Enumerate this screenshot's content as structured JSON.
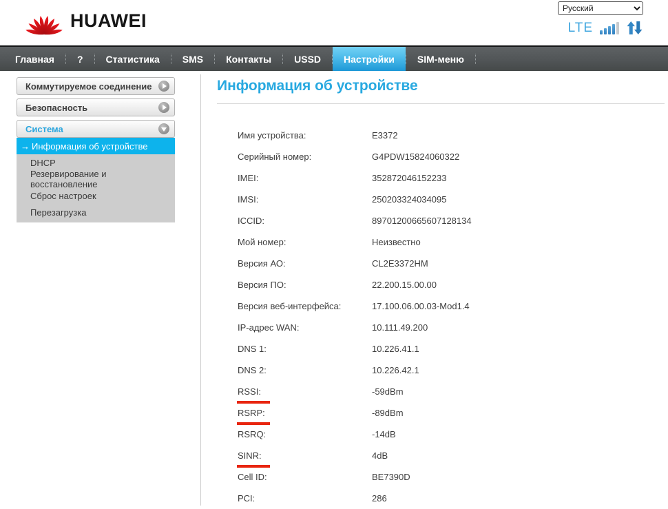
{
  "header": {
    "brand": "HUAWEI",
    "language_select": {
      "value": "Русский"
    },
    "network": {
      "type_label": "LTE",
      "signal": {
        "bars_total": 5,
        "bars_active": 4
      }
    }
  },
  "nav": {
    "items": [
      {
        "label": "Главная",
        "active": false
      },
      {
        "label": "?",
        "active": false
      },
      {
        "label": "Статистика",
        "active": false
      },
      {
        "label": "SMS",
        "active": false
      },
      {
        "label": "Контакты",
        "active": false
      },
      {
        "label": "USSD",
        "active": false
      },
      {
        "label": "Настройки",
        "active": true
      },
      {
        "label": "SIM-меню",
        "active": false
      }
    ]
  },
  "sidebar": {
    "sections": [
      {
        "label": "Коммутируемое соединение",
        "expanded": false
      },
      {
        "label": "Безопасность",
        "expanded": false
      },
      {
        "label": "Система",
        "expanded": true,
        "items": [
          {
            "label": "Информация об устройстве",
            "selected": true
          },
          {
            "label": "DHCP",
            "selected": false
          },
          {
            "label": "Резервирование и восстановление",
            "selected": false
          },
          {
            "label": "Сброс настроек",
            "selected": false
          },
          {
            "label": "Перезагрузка",
            "selected": false
          }
        ]
      }
    ]
  },
  "main": {
    "title": "Информация об устройстве",
    "rows": [
      {
        "label": "Имя устройства:",
        "value": "E3372"
      },
      {
        "label": "Серийный номер:",
        "value": "G4PDW15824060322"
      },
      {
        "label": "IMEI:",
        "value": "352872046152233"
      },
      {
        "label": "IMSI:",
        "value": "250203324034095"
      },
      {
        "label": "ICCID:",
        "value": "89701200665607128134"
      },
      {
        "label": "Мой номер:",
        "value": "Неизвестно"
      },
      {
        "label": "Версия АО:",
        "value": "CL2E3372HM"
      },
      {
        "label": "Версия ПО:",
        "value": "22.200.15.00.00"
      },
      {
        "label": "Версия веб-интерфейса:",
        "value": "17.100.06.00.03-Mod1.4"
      },
      {
        "label": "IP-адрес WAN:",
        "value": "10.111.49.200"
      },
      {
        "label": "DNS 1:",
        "value": "10.226.41.1"
      },
      {
        "label": "DNS 2:",
        "value": "10.226.42.1"
      },
      {
        "label": "RSSI:",
        "value": "-59dBm",
        "red_underline": true
      },
      {
        "label": "RSRP:",
        "value": "-89dBm",
        "red_underline": true
      },
      {
        "label": "RSRQ:",
        "value": "-14dB"
      },
      {
        "label": "SINR:",
        "value": "4dB",
        "red_underline": true
      },
      {
        "label": "Cell ID:",
        "value": "BE7390D"
      },
      {
        "label": "PCI:",
        "value": "286"
      }
    ]
  },
  "icons": {
    "logo": "huawei-flower-icon",
    "signal": "signal-bars-icon",
    "traffic": "upload-download-arrows-icon",
    "collapsed": "chevron-right-circle-icon",
    "expanded": "chevron-down-circle-icon",
    "selected_marker": "right-arrow-icon"
  },
  "colors": {
    "accent_blue": "#29a9e0",
    "active_tab_top": "#74d2f5",
    "active_tab_bottom": "#1e98d7",
    "selected_item_bg": "#0db3ec",
    "annotation_red": "#e8250f",
    "nav_bg": "#515557",
    "logo_red": "#d5120f"
  }
}
